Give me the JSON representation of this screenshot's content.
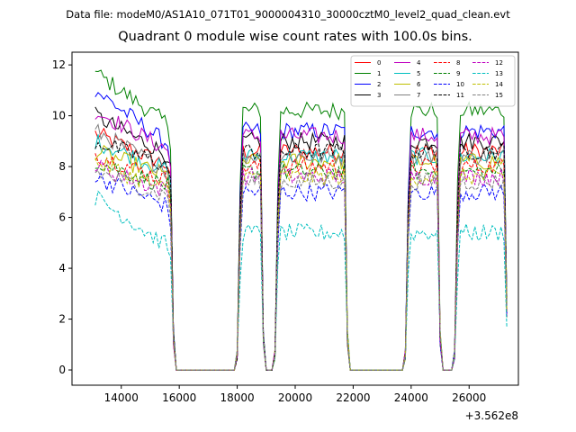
{
  "suptitle": "Data file: modeM0/AS1A10_071T01_9000004310_30000cztM0_level2_quad_clean.evt",
  "chart_data": {
    "type": "line",
    "title": "Quadrant 0 module wise count rates with 100.0s bins.",
    "xlabel": "",
    "ylabel": "",
    "x_offset_label": "+3.562e8",
    "xlim": [
      12300,
      27700
    ],
    "ylim": [
      -0.6,
      12.5
    ],
    "xticks": [
      14000,
      16000,
      18000,
      20000,
      22000,
      24000,
      26000
    ],
    "xtick_labels": [
      "14000",
      "16000",
      "18000",
      "20000",
      "22000",
      "24000",
      "26000"
    ],
    "yticks": [
      0,
      2,
      4,
      6,
      8,
      10,
      12
    ],
    "ytick_labels": [
      "0",
      "2",
      "4",
      "6",
      "8",
      "10",
      "12"
    ],
    "legend_position": "top-right",
    "time_bin_s": 100,
    "segments": [
      [
        13100,
        15700
      ],
      [
        18100,
        18800
      ],
      [
        19400,
        21700
      ],
      [
        23900,
        24900
      ],
      [
        25600,
        27300
      ]
    ],
    "gaps_zero": [
      [
        15900,
        17900
      ],
      [
        19000,
        19200
      ],
      [
        21900,
        23700
      ],
      [
        25100,
        25400
      ]
    ],
    "series": [
      {
        "name": "0",
        "color": "#ff0000",
        "dash": "solid",
        "level": 8.6,
        "start": 9.3
      },
      {
        "name": "1",
        "color": "#008000",
        "dash": "solid",
        "level": 10.2,
        "start": 11.7
      },
      {
        "name": "2",
        "color": "#0000ff",
        "dash": "solid",
        "level": 9.4,
        "start": 11.0
      },
      {
        "name": "3",
        "color": "#000000",
        "dash": "solid",
        "level": 9.0,
        "start": 10.0
      },
      {
        "name": "4",
        "color": "#bf00bf",
        "dash": "solid",
        "level": 9.2,
        "start": 10.2
      },
      {
        "name": "5",
        "color": "#00bfbf",
        "dash": "solid",
        "level": 8.4,
        "start": 9.0
      },
      {
        "name": "6",
        "color": "#bfbf00",
        "dash": "solid",
        "level": 8.2,
        "start": 8.6
      },
      {
        "name": "7",
        "color": "#808080",
        "dash": "solid",
        "level": 8.4,
        "start": 9.4
      },
      {
        "name": "8",
        "color": "#ff0000",
        "dash": "dashed",
        "level": 8.0,
        "start": 8.5
      },
      {
        "name": "9",
        "color": "#008000",
        "dash": "dashed",
        "level": 7.8,
        "start": 8.2
      },
      {
        "name": "10",
        "color": "#0000ff",
        "dash": "dashed",
        "level": 7.0,
        "start": 7.6
      },
      {
        "name": "11",
        "color": "#000000",
        "dash": "dashed",
        "level": 8.6,
        "start": 9.0
      },
      {
        "name": "12",
        "color": "#bf00bf",
        "dash": "dashed",
        "level": 7.6,
        "start": 8.0
      },
      {
        "name": "13",
        "color": "#00bfbf",
        "dash": "dashed",
        "level": 5.4,
        "start": 6.8
      },
      {
        "name": "14",
        "color": "#bfbf00",
        "dash": "dashed",
        "level": 7.6,
        "start": 8.2
      },
      {
        "name": "15",
        "color": "#808080",
        "dash": "dashed",
        "level": 7.4,
        "start": 7.8
      }
    ]
  }
}
